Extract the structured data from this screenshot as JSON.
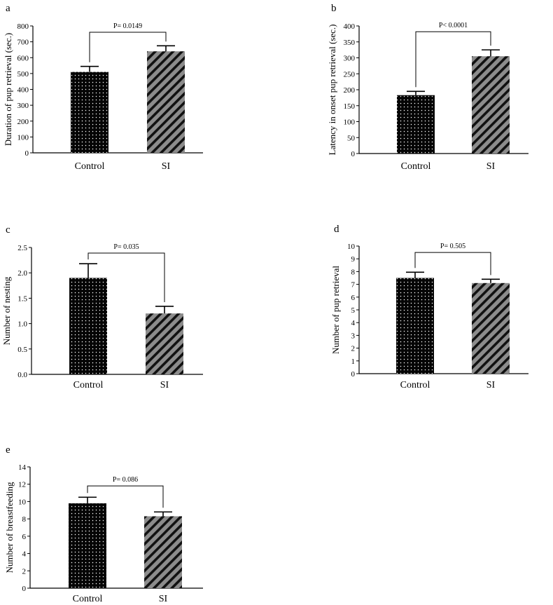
{
  "colors": {
    "control_fill": "#050505",
    "control_dots": "#ffffff",
    "si_fill": "#8c8c8c",
    "si_stripes": "#111111",
    "axis": "#000000"
  },
  "chart_data": [
    {
      "type": "bar",
      "panel": "a",
      "categories": [
        "Control",
        "SI"
      ],
      "values": [
        510,
        640
      ],
      "errors": [
        35,
        35
      ],
      "ylabel": "Duration of pup retrieval (sec.)",
      "ylim": [
        0,
        800
      ],
      "yticks": [
        0,
        100,
        200,
        300,
        400,
        500,
        600,
        700,
        800
      ],
      "ytick_labels": [
        "0",
        "100",
        "200",
        "300",
        "400",
        "500",
        "600",
        "700",
        "800"
      ],
      "significance": {
        "label": "P= 0.0149",
        "level": 760
      }
    },
    {
      "type": "bar",
      "panel": "b",
      "categories": [
        "Control",
        "SI"
      ],
      "values": [
        183,
        305
      ],
      "errors": [
        12,
        20
      ],
      "ylabel": "Latency in onset pup retrieval (sec.)",
      "ylim": [
        0,
        400
      ],
      "yticks": [
        0,
        50,
        100,
        150,
        200,
        250,
        300,
        350,
        400
      ],
      "ytick_labels": [
        "0",
        "50",
        "100",
        "150",
        "200",
        "250",
        "300",
        "350",
        "400"
      ],
      "significance": {
        "label": "P< 0.0001",
        "level": 382
      }
    },
    {
      "type": "bar",
      "panel": "c",
      "categories": [
        "Control",
        "SI"
      ],
      "values": [
        1.9,
        1.2
      ],
      "errors": [
        0.28,
        0.14
      ],
      "ylabel": "Number of nesting",
      "ylim": [
        0,
        2.5
      ],
      "yticks": [
        0,
        0.5,
        1.0,
        1.5,
        2.0,
        2.5
      ],
      "ytick_labels": [
        "0.0",
        "0.5",
        "1.0",
        "1.5",
        "2.0",
        "2.5"
      ],
      "significance": {
        "label": "P= 0.035",
        "level": 2.39
      }
    },
    {
      "type": "bar",
      "panel": "d",
      "categories": [
        "Control",
        "SI"
      ],
      "values": [
        7.5,
        7.1
      ],
      "errors": [
        0.45,
        0.3
      ],
      "ylabel": "Number of pup retrieval",
      "ylim": [
        0,
        10
      ],
      "yticks": [
        0,
        1,
        2,
        3,
        4,
        5,
        6,
        7,
        8,
        9,
        10
      ],
      "ytick_labels": [
        "0",
        "1",
        "2",
        "3",
        "4",
        "5",
        "6",
        "7",
        "8",
        "9",
        "10"
      ],
      "significance": {
        "label": "P= 0.505",
        "level": 9.5
      }
    },
    {
      "type": "bar",
      "panel": "e",
      "categories": [
        "Control",
        "SI"
      ],
      "values": [
        9.8,
        8.3
      ],
      "errors": [
        0.7,
        0.5
      ],
      "ylabel": "Number of  breastfeeding",
      "ylim": [
        0,
        14
      ],
      "yticks": [
        0,
        2,
        4,
        6,
        8,
        10,
        12,
        14
      ],
      "ytick_labels": [
        "0",
        "2",
        "4",
        "6",
        "8",
        "10",
        "12",
        "14"
      ],
      "significance": {
        "label": "P= 0.086",
        "level": 11.8
      }
    }
  ]
}
